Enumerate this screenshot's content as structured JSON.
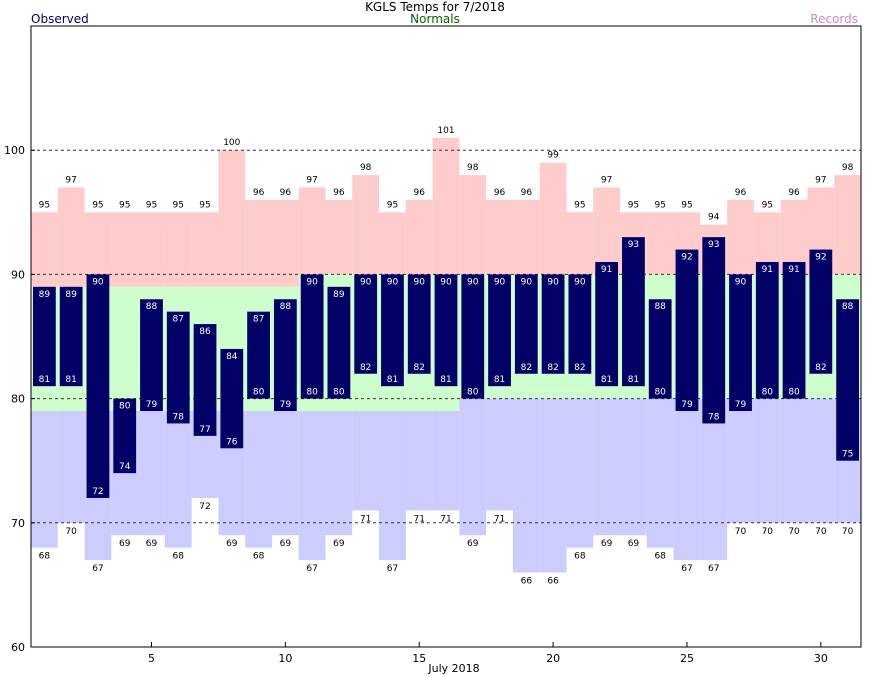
{
  "header": {
    "title": "KGLS Temps for 7/2018",
    "observed": "Observed",
    "normals": "Normals",
    "records": "Records"
  },
  "colors": {
    "record_band": "#ffcccc",
    "normal_band": "#ccffcc",
    "below_normal_band": "#ccccff",
    "observed_bar": "#000066",
    "observed_text": "#ffffff"
  },
  "chart_data": {
    "type": "bar",
    "title": "KGLS Temps for 7/2018",
    "xlabel": "July 2018",
    "ylabel": "",
    "ylim": [
      60,
      110
    ],
    "y_ticks": [
      60,
      70,
      80,
      90,
      100
    ],
    "x_ticks": [
      5,
      10,
      15,
      20,
      25,
      30
    ],
    "grid": "dashed horizontal lines at 70, 80, 90, 100",
    "days": [
      1,
      2,
      3,
      4,
      5,
      6,
      7,
      8,
      9,
      10,
      11,
      12,
      13,
      14,
      15,
      16,
      17,
      18,
      19,
      20,
      21,
      22,
      23,
      24,
      25,
      26,
      27,
      28,
      29,
      30,
      31
    ],
    "series": [
      {
        "name": "Observed",
        "high": [
          89,
          89,
          90,
          80,
          88,
          87,
          86,
          84,
          87,
          88,
          90,
          89,
          90,
          90,
          90,
          90,
          90,
          90,
          90,
          90,
          90,
          91,
          93,
          88,
          92,
          93,
          90,
          91,
          91,
          92,
          88
        ],
        "low": [
          81,
          81,
          72,
          74,
          79,
          78,
          77,
          76,
          80,
          79,
          80,
          80,
          82,
          81,
          82,
          81,
          80,
          81,
          82,
          82,
          82,
          81,
          81,
          80,
          79,
          78,
          79,
          80,
          80,
          82,
          75
        ]
      },
      {
        "name": "Normals",
        "high": [
          89,
          89,
          89,
          89,
          89,
          89,
          89,
          89,
          89,
          89,
          90,
          90,
          90,
          90,
          90,
          90,
          90,
          90,
          90,
          90,
          90,
          90,
          90,
          90,
          90,
          90,
          90,
          90,
          90,
          90,
          90
        ],
        "low": [
          79,
          79,
          79,
          79,
          79,
          79,
          79,
          79,
          79,
          79,
          79,
          79,
          79,
          79,
          79,
          79,
          80,
          80,
          80,
          80,
          80,
          80,
          80,
          80,
          80,
          80,
          80,
          80,
          80,
          80,
          80
        ]
      },
      {
        "name": "Records",
        "high": [
          95,
          97,
          95,
          95,
          95,
          95,
          95,
          100,
          96,
          96,
          97,
          96,
          98,
          95,
          96,
          101,
          98,
          96,
          96,
          99,
          95,
          97,
          95,
          95,
          95,
          94,
          96,
          95,
          96,
          97,
          98
        ],
        "low": [
          68,
          70,
          67,
          69,
          69,
          68,
          72,
          69,
          68,
          69,
          67,
          69,
          71,
          67,
          71,
          71,
          69,
          71,
          66,
          66,
          68,
          69,
          69,
          68,
          67,
          67,
          70,
          70,
          70,
          70,
          70
        ]
      }
    ]
  }
}
